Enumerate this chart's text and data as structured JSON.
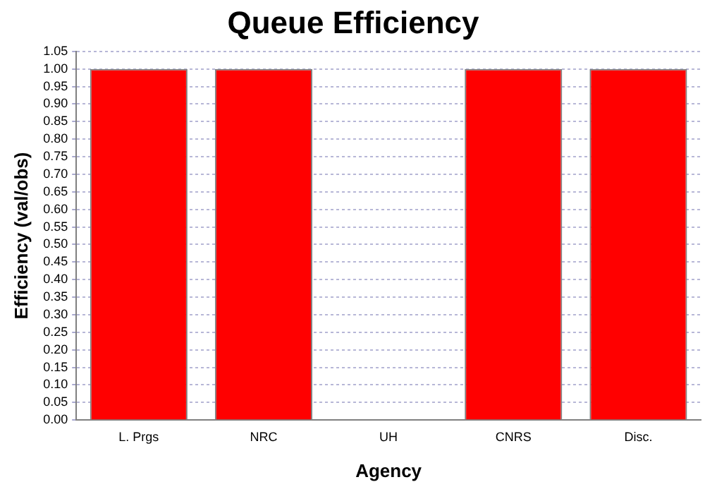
{
  "chart_data": {
    "type": "bar",
    "title": "Queue Efficiency",
    "xlabel": "Agency",
    "ylabel": "Efficiency (val/obs)",
    "categories": [
      "L. Prgs",
      "NRC",
      "UH",
      "CNRS",
      "Disc."
    ],
    "values": [
      1,
      1,
      0,
      1,
      1
    ],
    "color": "#ff0000",
    "ylim": [
      0,
      1.05
    ],
    "yticks": [
      {
        "value": 0,
        "label": "0.00"
      },
      {
        "value": 0.05,
        "label": "0.05"
      },
      {
        "value": 0.1,
        "label": "0.10"
      },
      {
        "value": 0.15,
        "label": "0.15"
      },
      {
        "value": 0.2,
        "label": "0.20"
      },
      {
        "value": 0.25,
        "label": "0.25"
      },
      {
        "value": 0.3,
        "label": "0.30"
      },
      {
        "value": 0.35,
        "label": "0.35"
      },
      {
        "value": 0.4,
        "label": "0.40"
      },
      {
        "value": 0.45,
        "label": "0.45"
      },
      {
        "value": 0.5,
        "label": "0.50"
      },
      {
        "value": 0.55,
        "label": "0.55"
      },
      {
        "value": 0.6,
        "label": "0.60"
      },
      {
        "value": 0.65,
        "label": "0.65"
      },
      {
        "value": 0.7,
        "label": "0.70"
      },
      {
        "value": 0.75,
        "label": "0.75"
      },
      {
        "value": 0.8,
        "label": "0.80"
      },
      {
        "value": 0.85,
        "label": "0.85"
      },
      {
        "value": 0.9,
        "label": "0.90"
      },
      {
        "value": 0.95,
        "label": "0.95"
      },
      {
        "value": 1,
        "label": "1.00"
      },
      {
        "value": 1.05,
        "label": "1.05"
      }
    ],
    "grid": "y"
  }
}
